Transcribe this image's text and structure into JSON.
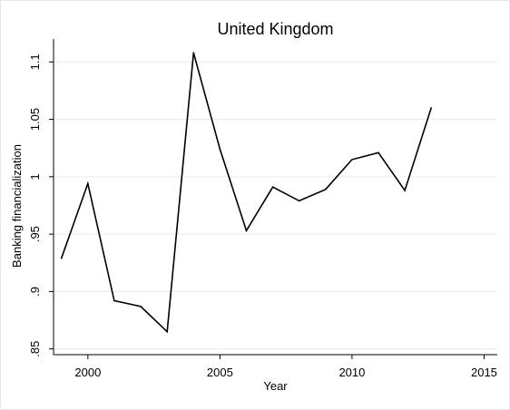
{
  "chart_data": {
    "type": "line",
    "title": "United Kingdom",
    "xlabel": "Year",
    "ylabel": "Banking financialization",
    "xlim": [
      1998.7,
      2015.5
    ],
    "ylim": [
      0.845,
      1.12
    ],
    "x_ticks": [
      2000,
      2005,
      2010,
      2015
    ],
    "x_tick_labels": [
      "2000",
      "2005",
      "2010",
      "2015"
    ],
    "y_ticks": [
      0.85,
      0.9,
      0.95,
      1,
      1.05,
      1.1
    ],
    "y_tick_labels": [
      ".85",
      ".9",
      ".95",
      "1",
      "1.05",
      "1.1"
    ],
    "grid": true,
    "legend": "none",
    "series": [
      {
        "x": [
          1999,
          2000,
          2001,
          2002,
          2003,
          2004,
          2005,
          2006,
          2007,
          2008,
          2009,
          2010,
          2011,
          2012,
          2013
        ],
        "values": [
          0.929,
          0.994,
          0.892,
          0.887,
          0.865,
          1.108,
          1.024,
          0.953,
          0.991,
          0.979,
          0.989,
          1.015,
          1.021,
          0.988,
          1.06
        ]
      }
    ],
    "colors": {
      "line": "#000000",
      "grid": "#eaeaea",
      "axis": "#000000"
    }
  }
}
